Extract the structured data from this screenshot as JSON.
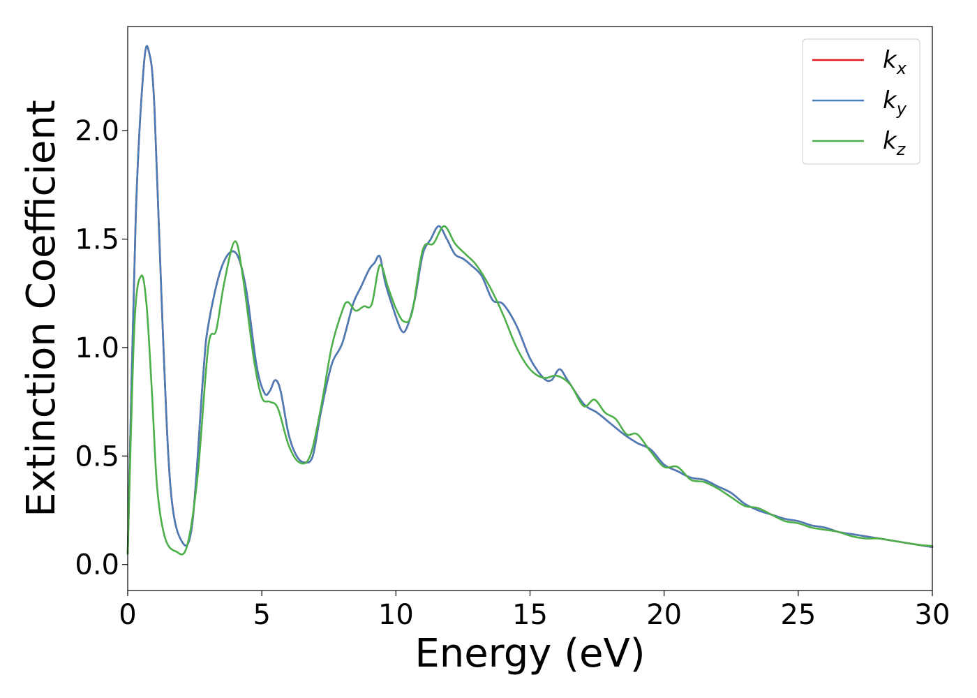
{
  "chart_data": {
    "type": "line",
    "xlabel": "Energy (eV)",
    "ylabel": "Extinction Coefficient",
    "xlim": [
      0,
      30
    ],
    "ylim": [
      -0.12,
      2.48
    ],
    "xticks": [
      0,
      5,
      10,
      15,
      20,
      25,
      30
    ],
    "xtick_labels": [
      "0",
      "5",
      "10",
      "15",
      "20",
      "25",
      "30"
    ],
    "yticks": [
      0.0,
      0.5,
      1.0,
      1.5,
      2.0
    ],
    "ytick_labels": [
      "0.0",
      "0.5",
      "1.0",
      "1.5",
      "2.0"
    ],
    "grid": false,
    "legend_position": "top-right",
    "series": [
      {
        "name": "k_x",
        "label_main": "k",
        "label_sub": "x",
        "color": "#e41a1c",
        "x": [
          0,
          0.3,
          0.6,
          0.8,
          1.0,
          1.3,
          1.6,
          2.0,
          2.4,
          2.8,
          3.0,
          3.5,
          4.0,
          4.4,
          4.8,
          5.1,
          5.3,
          5.5,
          5.7,
          6.0,
          6.3,
          6.6,
          6.9,
          7.2,
          7.6,
          8.0,
          8.4,
          8.7,
          9.0,
          9.2,
          9.4,
          9.6,
          9.9,
          10.2,
          10.4,
          10.7,
          11.0,
          11.3,
          11.6,
          11.9,
          12.2,
          12.5,
          12.8,
          13.2,
          13.6,
          14.0,
          14.5,
          15.0,
          15.5,
          15.8,
          16.1,
          16.4,
          17.0,
          17.5,
          18.0,
          18.5,
          19.0,
          19.5,
          20.0,
          20.5,
          21.0,
          21.5,
          22.0,
          22.5,
          23.0,
          23.5,
          24.0,
          24.5,
          25.0,
          25.5,
          26.0,
          26.5,
          27.0,
          27.5,
          28.0,
          28.5,
          29.0,
          29.5,
          30.0
        ],
        "values": [
          0.05,
          1.6,
          2.3,
          2.36,
          2.1,
          1.1,
          0.35,
          0.11,
          0.18,
          0.85,
          1.1,
          1.37,
          1.44,
          1.28,
          0.92,
          0.79,
          0.8,
          0.85,
          0.8,
          0.6,
          0.5,
          0.47,
          0.5,
          0.7,
          0.92,
          1.02,
          1.2,
          1.28,
          1.36,
          1.39,
          1.42,
          1.3,
          1.18,
          1.08,
          1.09,
          1.22,
          1.43,
          1.5,
          1.56,
          1.5,
          1.43,
          1.41,
          1.38,
          1.33,
          1.22,
          1.2,
          1.1,
          0.95,
          0.86,
          0.85,
          0.9,
          0.85,
          0.74,
          0.7,
          0.65,
          0.6,
          0.56,
          0.53,
          0.46,
          0.43,
          0.4,
          0.39,
          0.36,
          0.33,
          0.28,
          0.25,
          0.23,
          0.21,
          0.2,
          0.18,
          0.17,
          0.15,
          0.14,
          0.13,
          0.12,
          0.11,
          0.1,
          0.09,
          0.08
        ]
      },
      {
        "name": "k_y",
        "label_main": "k",
        "label_sub": "y",
        "color": "#4a7db8",
        "x": [
          0,
          0.3,
          0.6,
          0.8,
          1.0,
          1.3,
          1.6,
          2.0,
          2.4,
          2.8,
          3.0,
          3.5,
          4.0,
          4.4,
          4.8,
          5.1,
          5.3,
          5.5,
          5.7,
          6.0,
          6.3,
          6.6,
          6.9,
          7.2,
          7.6,
          8.0,
          8.4,
          8.7,
          9.0,
          9.2,
          9.4,
          9.6,
          9.9,
          10.2,
          10.4,
          10.7,
          11.0,
          11.3,
          11.6,
          11.9,
          12.2,
          12.5,
          12.8,
          13.2,
          13.6,
          14.0,
          14.5,
          15.0,
          15.5,
          15.8,
          16.1,
          16.4,
          17.0,
          17.5,
          18.0,
          18.5,
          19.0,
          19.5,
          20.0,
          20.5,
          21.0,
          21.5,
          22.0,
          22.5,
          23.0,
          23.5,
          24.0,
          24.5,
          25.0,
          25.5,
          26.0,
          26.5,
          27.0,
          27.5,
          28.0,
          28.5,
          29.0,
          29.5,
          30.0
        ],
        "values": [
          0.05,
          1.6,
          2.3,
          2.36,
          2.1,
          1.1,
          0.35,
          0.11,
          0.18,
          0.85,
          1.1,
          1.37,
          1.44,
          1.28,
          0.92,
          0.79,
          0.8,
          0.85,
          0.8,
          0.6,
          0.5,
          0.47,
          0.5,
          0.7,
          0.92,
          1.02,
          1.2,
          1.28,
          1.36,
          1.39,
          1.42,
          1.3,
          1.18,
          1.08,
          1.09,
          1.22,
          1.43,
          1.5,
          1.56,
          1.5,
          1.43,
          1.41,
          1.38,
          1.33,
          1.22,
          1.2,
          1.1,
          0.95,
          0.86,
          0.85,
          0.9,
          0.85,
          0.74,
          0.7,
          0.65,
          0.6,
          0.56,
          0.53,
          0.46,
          0.43,
          0.4,
          0.39,
          0.36,
          0.33,
          0.28,
          0.25,
          0.23,
          0.21,
          0.2,
          0.18,
          0.17,
          0.15,
          0.14,
          0.13,
          0.12,
          0.11,
          0.1,
          0.09,
          0.08
        ]
      },
      {
        "name": "k_z",
        "label_main": "k",
        "label_sub": "z",
        "color": "#4daf4a",
        "x": [
          0,
          0.25,
          0.5,
          0.7,
          0.9,
          1.1,
          1.4,
          1.8,
          2.2,
          2.6,
          3.0,
          3.3,
          3.6,
          4.0,
          4.3,
          4.7,
          5.0,
          5.3,
          5.6,
          6.0,
          6.4,
          6.8,
          7.2,
          7.6,
          8.0,
          8.2,
          8.5,
          8.8,
          9.1,
          9.4,
          9.7,
          10.0,
          10.3,
          10.6,
          11.0,
          11.4,
          11.8,
          12.2,
          12.6,
          13.0,
          13.5,
          14.0,
          14.5,
          15.0,
          15.5,
          16.0,
          16.5,
          17.0,
          17.4,
          17.8,
          18.2,
          18.6,
          19.0,
          19.5,
          20.0,
          20.5,
          21.0,
          21.5,
          22.0,
          22.5,
          23.0,
          23.5,
          24.0,
          24.5,
          25.0,
          25.5,
          26.0,
          26.5,
          27.0,
          27.5,
          28.0,
          28.5,
          29.0,
          29.5,
          30.0
        ],
        "values": [
          0.05,
          1.1,
          1.33,
          1.2,
          0.8,
          0.35,
          0.12,
          0.06,
          0.08,
          0.4,
          1.0,
          1.08,
          1.3,
          1.49,
          1.32,
          0.95,
          0.77,
          0.75,
          0.72,
          0.55,
          0.47,
          0.5,
          0.72,
          1.0,
          1.17,
          1.21,
          1.17,
          1.19,
          1.2,
          1.38,
          1.28,
          1.18,
          1.12,
          1.16,
          1.45,
          1.48,
          1.56,
          1.48,
          1.43,
          1.38,
          1.28,
          1.15,
          1.0,
          0.9,
          0.86,
          0.87,
          0.83,
          0.73,
          0.76,
          0.7,
          0.67,
          0.6,
          0.6,
          0.52,
          0.45,
          0.45,
          0.39,
          0.38,
          0.35,
          0.31,
          0.27,
          0.26,
          0.23,
          0.2,
          0.19,
          0.17,
          0.16,
          0.15,
          0.13,
          0.12,
          0.12,
          0.11,
          0.1,
          0.09,
          0.085
        ]
      }
    ]
  }
}
